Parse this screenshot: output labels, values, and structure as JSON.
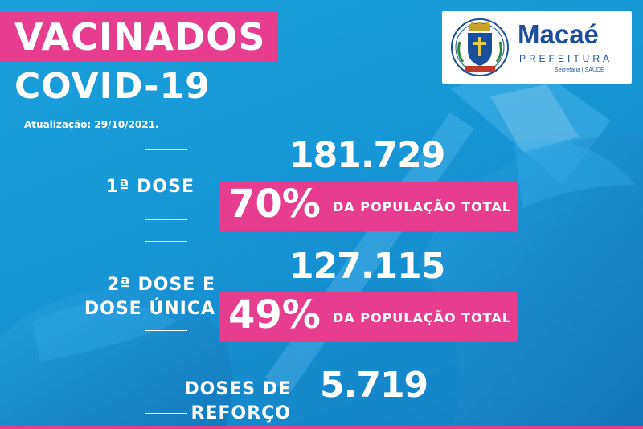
{
  "header": {
    "title": "VACINADOS",
    "subtitle": "COVID-19",
    "update": "Atualização: 29/10/2021."
  },
  "logo": {
    "name": "Macaé",
    "sub": "PREFEITURA",
    "dept": "Secretaria | SAÚDE",
    "crest_text": "MACAÉ"
  },
  "doses": [
    {
      "label": "1ª DOSE",
      "value": "181.729",
      "percent": "70%",
      "percent_text": "DA POPULAÇÃO TOTAL"
    },
    {
      "label_line1": "2ª DOSE E",
      "label_line2": "DOSE ÚNICA",
      "value": "127.115",
      "percent": "49%",
      "percent_text": "DA POPULAÇÃO TOTAL"
    },
    {
      "label": "DOSES DE REFORÇO",
      "value": "5.719"
    }
  ],
  "colors": {
    "accent": "#e63d8e",
    "background": "#1696d6",
    "logo_blue": "#1b4f9c"
  }
}
